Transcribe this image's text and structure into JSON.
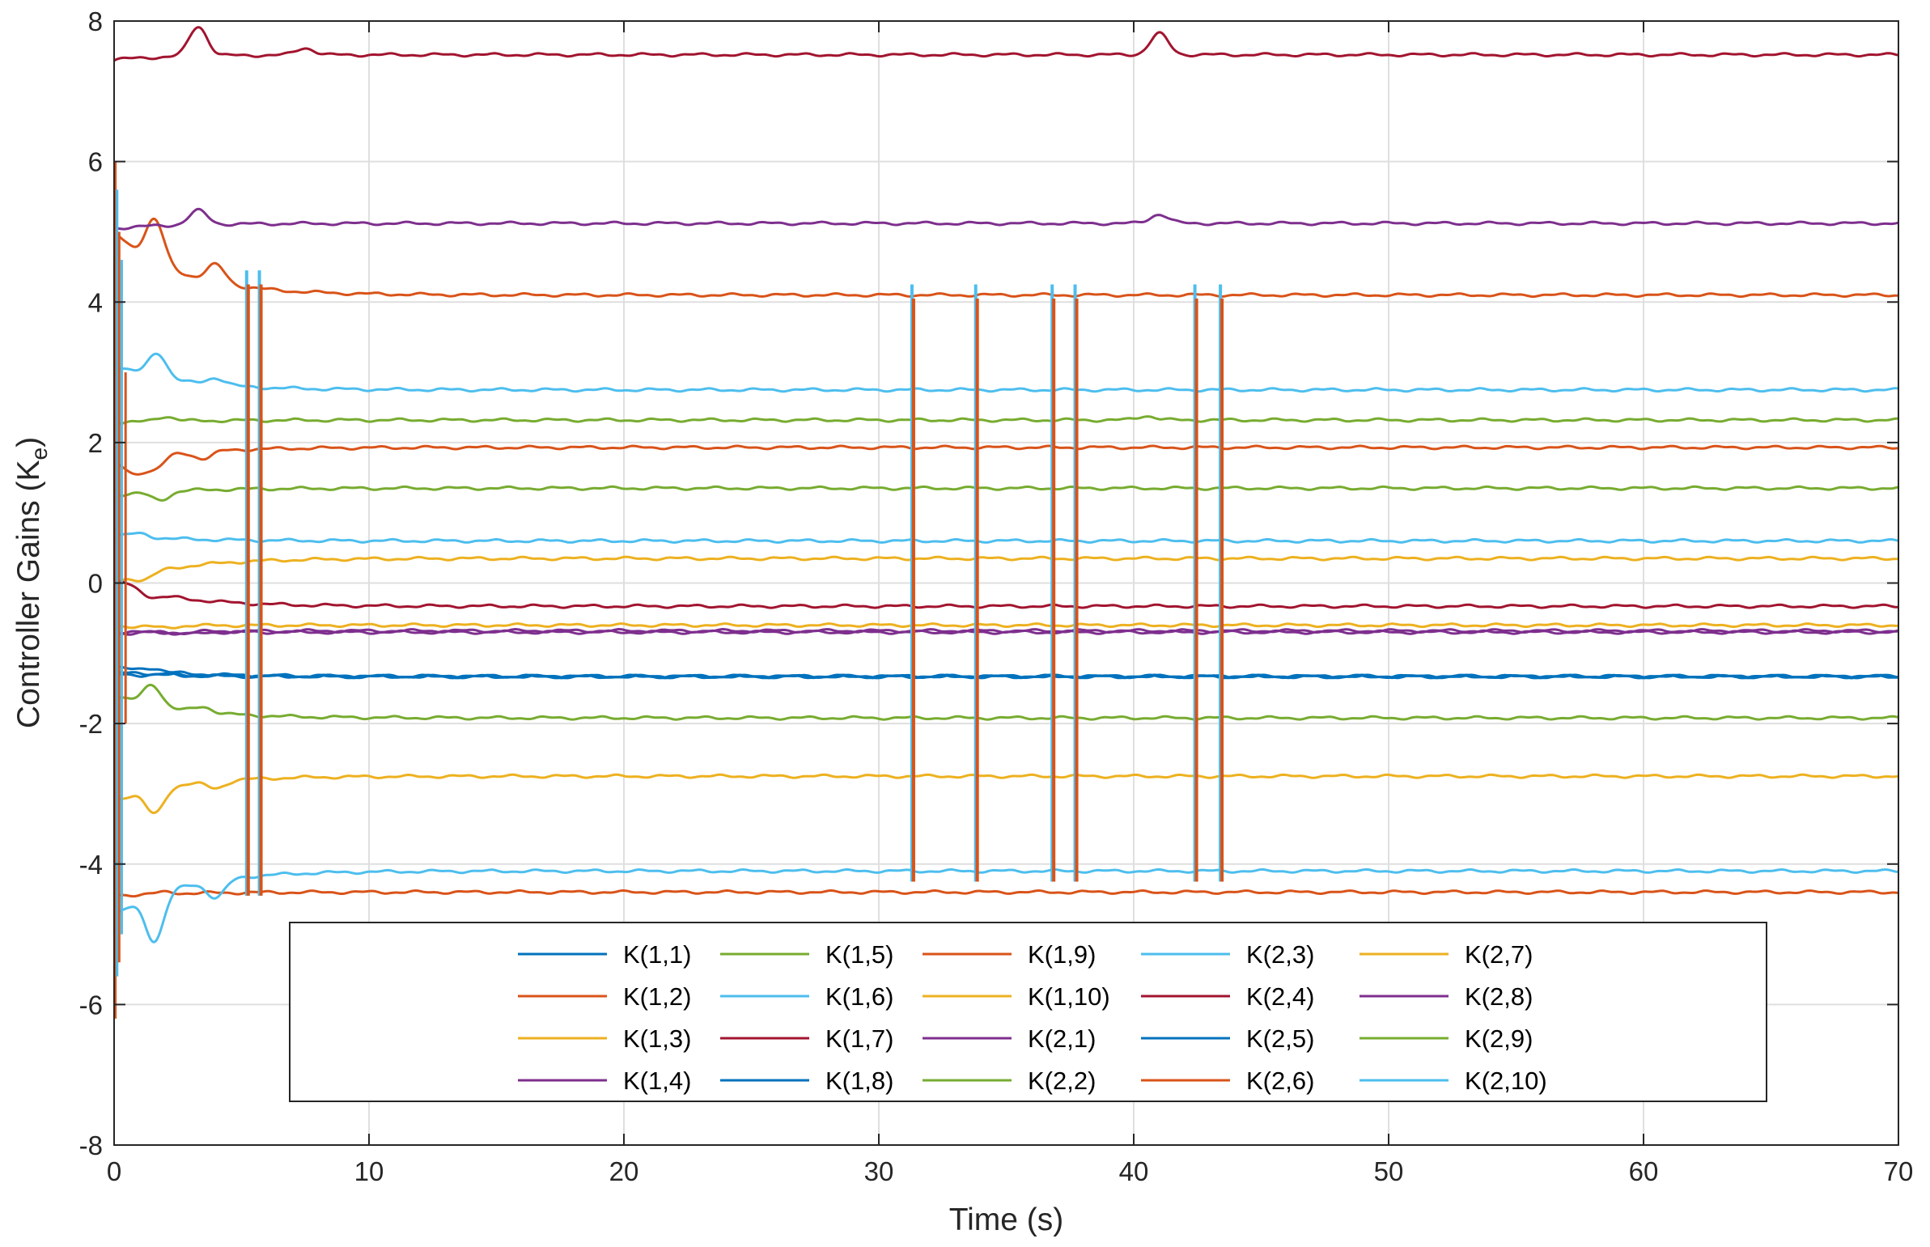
{
  "chart_data": {
    "type": "line",
    "title": "",
    "xlabel": "Time (s)",
    "ylabel": "Controller Gains (K",
    "ylabel_sub": "e",
    "ylabel_close": ")",
    "xlim": [
      0,
      70
    ],
    "ylim": [
      -8,
      8
    ],
    "grid": true,
    "xticks": [
      0,
      10,
      20,
      30,
      40,
      50,
      60,
      70
    ],
    "yticks": [
      -8,
      -6,
      -4,
      -2,
      0,
      2,
      4,
      6,
      8
    ],
    "xtick_labels": [
      "0",
      "10",
      "20",
      "30",
      "40",
      "50",
      "60",
      "70"
    ],
    "ytick_labels": [
      "-8",
      "-6",
      "-4",
      "-2",
      "0",
      "2",
      "4",
      "6",
      "8"
    ],
    "legend_position": "bottom-center",
    "legend_columns": 5,
    "spike_times": [
      5.2,
      5.7,
      31.3,
      33.8,
      36.8,
      37.7,
      42.4,
      43.4
    ],
    "series": [
      {
        "name": "K(1,1)",
        "color": "#0072BD",
        "final": -1.33,
        "start": -1.2,
        "bumps": [
          [
            1.5,
            0.05
          ]
        ]
      },
      {
        "name": "K(1,2)",
        "color": "#D95319",
        "final": 1.93,
        "start": 1.7,
        "bumps": [
          [
            0.8,
            -0.2
          ],
          [
            1.6,
            -0.18
          ],
          [
            3.5,
            -0.1
          ]
        ]
      },
      {
        "name": "K(1,3)",
        "color": "#EDB120",
        "final": 0.35,
        "start": 0.0,
        "bumps": [
          [
            1.2,
            -0.08
          ]
        ]
      },
      {
        "name": "K(1,4)",
        "color": "#7E2F8E",
        "final": -0.68,
        "start": -0.72,
        "bumps": [
          [
            2.5,
            -0.02
          ]
        ]
      },
      {
        "name": "K(1,5)",
        "color": "#77AC30",
        "final": 1.35,
        "start": 1.25,
        "bumps": [
          [
            1.8,
            -0.12
          ]
        ]
      },
      {
        "name": "K(1,6)",
        "color": "#4DBEEE",
        "final": 2.75,
        "start": 3.1,
        "bumps": [
          [
            1.7,
            0.35
          ],
          [
            4.0,
            0.1
          ]
        ]
      },
      {
        "name": "K(1,7)",
        "color": "#A2142F",
        "final": 7.52,
        "start": 7.45,
        "bumps": [
          [
            3.3,
            0.42
          ],
          [
            7.5,
            0.1
          ],
          [
            41.0,
            0.3
          ]
        ]
      },
      {
        "name": "K(1,8)",
        "color": "#0072BD",
        "final": -1.33,
        "start": -1.28,
        "bumps": [
          [
            1.0,
            0.02
          ]
        ]
      },
      {
        "name": "K(1,9)",
        "color": "#D95319",
        "final": 4.1,
        "start": 5.0,
        "bumps": [
          [
            1.6,
            0.6
          ],
          [
            4.0,
            0.25
          ]
        ]
      },
      {
        "name": "K(1,10)",
        "color": "#EDB120",
        "final": -0.6,
        "start": -0.62,
        "bumps": [
          [
            2.0,
            -0.03
          ]
        ]
      },
      {
        "name": "K(2,1)",
        "color": "#7E2F8E",
        "final": 5.12,
        "start": 5.05,
        "bumps": [
          [
            3.3,
            0.2
          ],
          [
            41.0,
            0.13
          ]
        ]
      },
      {
        "name": "K(2,2)",
        "color": "#77AC30",
        "final": 2.32,
        "start": 2.28,
        "bumps": [
          [
            2.0,
            0.07
          ],
          [
            40.5,
            0.06
          ]
        ]
      },
      {
        "name": "K(2,3)",
        "color": "#4DBEEE",
        "final": 0.6,
        "start": 0.68,
        "bumps": [
          [
            1.0,
            0.05
          ]
        ]
      },
      {
        "name": "K(2,4)",
        "color": "#A2142F",
        "final": -0.33,
        "start": 0.0,
        "bumps": [
          [
            0.5,
            0.05
          ],
          [
            1.5,
            -0.05
          ]
        ]
      },
      {
        "name": "K(2,5)",
        "color": "#0072BD",
        "final": -1.33,
        "start": -1.3,
        "bumps": [
          [
            2.0,
            0.02
          ]
        ]
      },
      {
        "name": "K(2,6)",
        "color": "#D95319",
        "final": -4.4,
        "start": -4.45,
        "bumps": [
          [
            2.0,
            0.02
          ]
        ]
      },
      {
        "name": "K(2,7)",
        "color": "#EDB120",
        "final": -2.75,
        "start": -3.1,
        "bumps": [
          [
            1.6,
            -0.35
          ],
          [
            4.0,
            -0.1
          ]
        ]
      },
      {
        "name": "K(2,8)",
        "color": "#7E2F8E",
        "final": -0.7,
        "start": -0.7,
        "bumps": [
          [
            3.0,
            -0.03
          ]
        ]
      },
      {
        "name": "K(2,9)",
        "color": "#77AC30",
        "final": -1.92,
        "start": -1.6,
        "bumps": [
          [
            1.5,
            0.3
          ],
          [
            3.5,
            0.08
          ]
        ]
      },
      {
        "name": "K(2,10)",
        "color": "#4DBEEE",
        "final": -4.1,
        "start": -4.75,
        "bumps": [
          [
            1.6,
            -0.65
          ],
          [
            4.0,
            -0.25
          ]
        ]
      }
    ]
  }
}
